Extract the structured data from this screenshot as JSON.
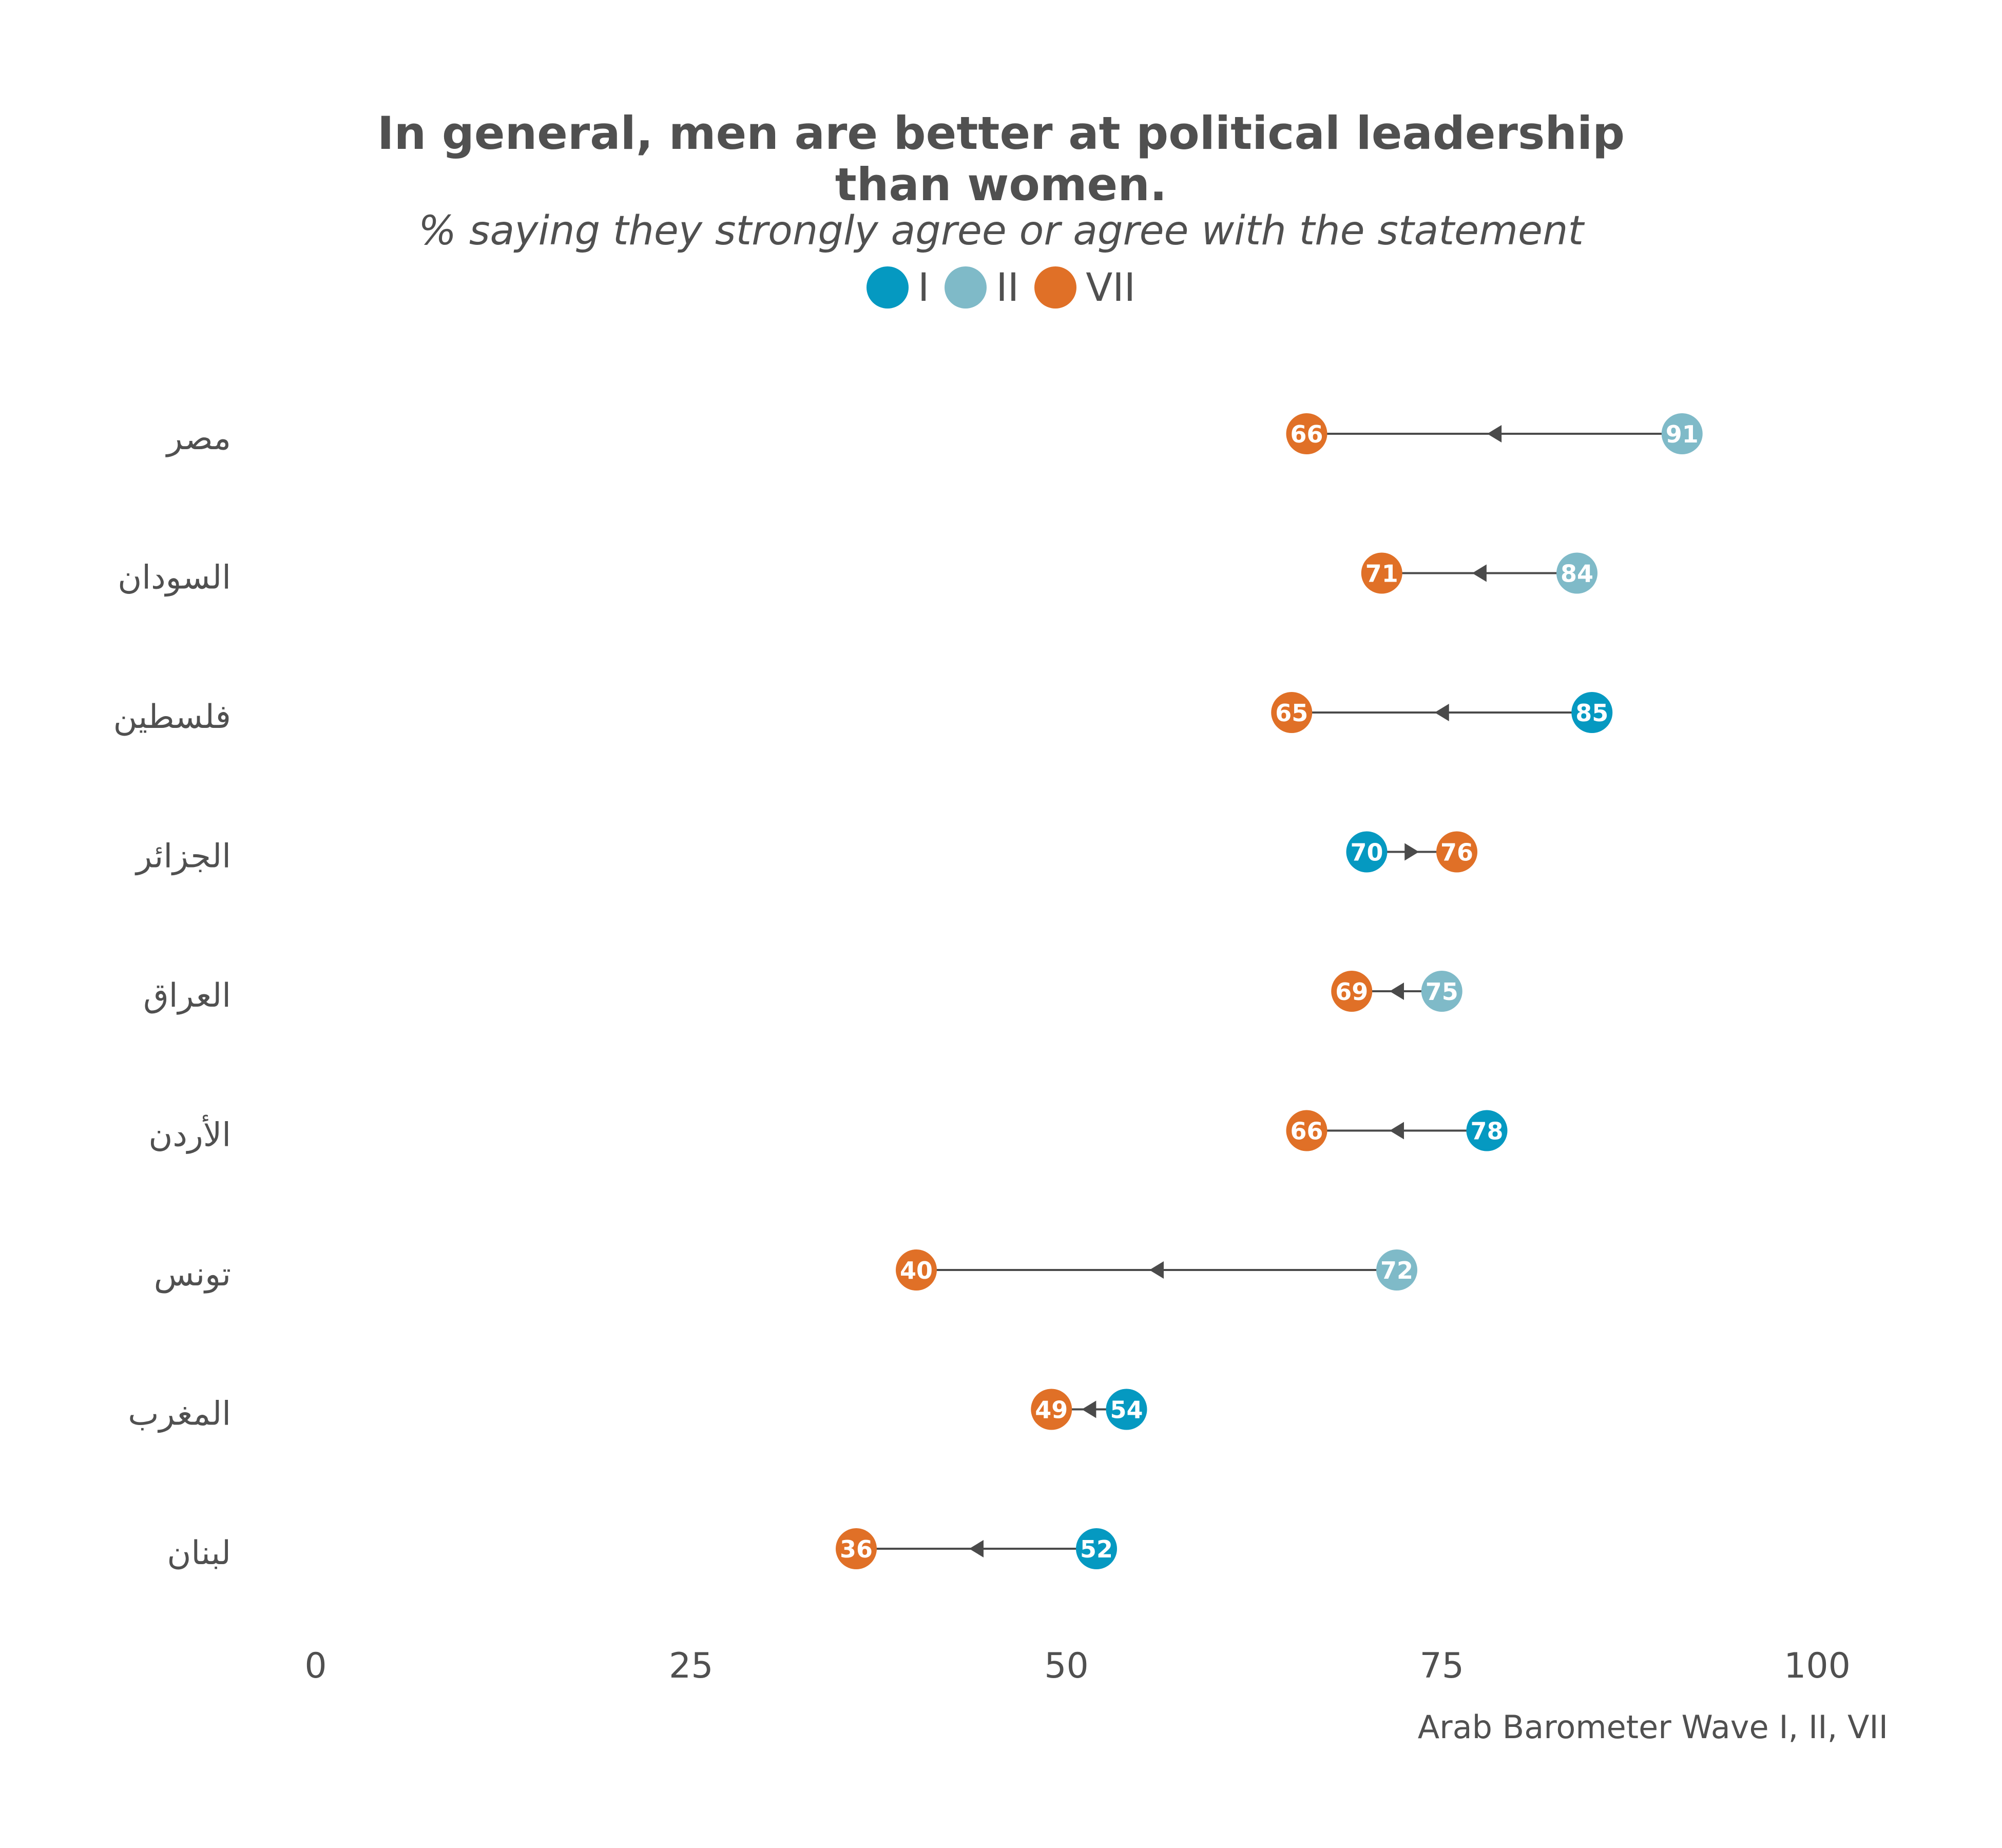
{
  "chart_data": {
    "type": "dumbbell",
    "title": "In general, men are better at political leadership than women.",
    "subtitle": "% saying they strongly agree or agree with the statement",
    "caption": "Arab Barometer Wave I, II, VII",
    "xlim": [
      0,
      100
    ],
    "x_ticks": [
      "0",
      "25",
      "50",
      "75",
      "100"
    ],
    "x_tick_values": [
      0,
      25,
      50,
      75,
      100
    ],
    "grid": false,
    "legend_position": "top",
    "waves": [
      {
        "name": "I",
        "color": "#0599c1"
      },
      {
        "name": "II",
        "color": "#7fbac8"
      },
      {
        "name": "VII",
        "color": "#e07027"
      }
    ],
    "rows": [
      {
        "country": "مصر",
        "start": {
          "wave": "II",
          "value": 91
        },
        "end": {
          "wave": "VII",
          "value": 66
        }
      },
      {
        "country": "السودان",
        "start": {
          "wave": "II",
          "value": 84
        },
        "end": {
          "wave": "VII",
          "value": 71
        }
      },
      {
        "country": "فلسطين",
        "start": {
          "wave": "I",
          "value": 85
        },
        "end": {
          "wave": "VII",
          "value": 65
        }
      },
      {
        "country": "الجزائر",
        "start": {
          "wave": "I",
          "value": 70
        },
        "end": {
          "wave": "VII",
          "value": 76
        }
      },
      {
        "country": "العراق",
        "start": {
          "wave": "II",
          "value": 75
        },
        "end": {
          "wave": "VII",
          "value": 69
        }
      },
      {
        "country": "الأردن",
        "start": {
          "wave": "I",
          "value": 78
        },
        "end": {
          "wave": "VII",
          "value": 66
        }
      },
      {
        "country": "تونس",
        "start": {
          "wave": "II",
          "value": 72
        },
        "end": {
          "wave": "VII",
          "value": 40
        }
      },
      {
        "country": "المغرب",
        "start": {
          "wave": "I",
          "value": 54
        },
        "end": {
          "wave": "VII",
          "value": 49
        }
      },
      {
        "country": "لبنان",
        "start": {
          "wave": "I",
          "value": 52
        },
        "end": {
          "wave": "VII",
          "value": 36
        }
      }
    ]
  }
}
